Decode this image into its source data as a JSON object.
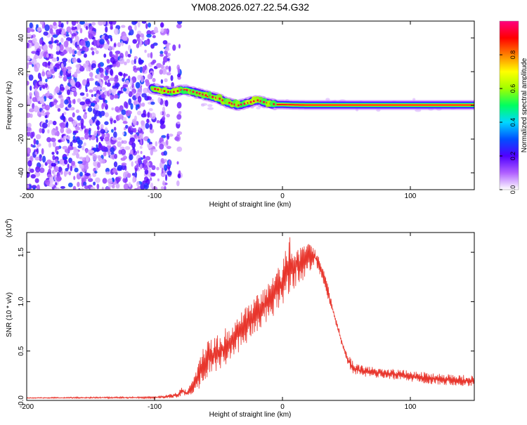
{
  "title": "YM08.2026.027.22.54.G32",
  "colors": {
    "snr_line": "#e8352c",
    "frame": "#000000",
    "background": "#ffffff",
    "signal_core": "#e02020",
    "noise": "#6a1fd8"
  },
  "colorbar": {
    "label": "Normalized spectral amplitude",
    "min": 0.0,
    "max": 1.0,
    "ticks": [
      "0.0",
      "0.2",
      "0.4",
      "0.6",
      "0.8"
    ],
    "tick_values": [
      0.0,
      0.2,
      0.4,
      0.6,
      0.8
    ],
    "stops": [
      "#ffffff",
      "#b060ff",
      "#5000ff",
      "#0050ff",
      "#00d8ff",
      "#00ff60",
      "#a0ff00",
      "#ffff00",
      "#ff8000",
      "#ff0000",
      "#ff0080"
    ]
  },
  "chart_data": [
    {
      "type": "heatmap",
      "title": "YM08.2026.027.22.54.G32",
      "xlabel": "Height of straight line (km)",
      "ylabel": "Frequency (Hz)",
      "xlim": [
        -200,
        150
      ],
      "ylim": [
        -50,
        50
      ],
      "xticks": [
        -200,
        -100,
        0,
        100
      ],
      "xtick_labels": [
        "-200",
        "-100",
        "0",
        "100"
      ],
      "yticks": [
        -40,
        -20,
        0,
        20,
        40
      ],
      "ytick_labels": [
        "-40",
        "-20",
        "0",
        "20",
        "40"
      ],
      "noise_region_km": [
        -200,
        -80
      ],
      "ridge": {
        "description": "dominant spectral peak (normalized amplitude ~1.0)",
        "x_km": [
          -102,
          -95,
          -90,
          -85,
          -80,
          -75,
          -70,
          -65,
          -60,
          -55,
          -50,
          -45,
          -40,
          -35,
          -30,
          -25,
          -20,
          -15,
          -10,
          -5,
          0,
          10,
          20,
          50,
          100,
          150
        ],
        "freq_hz": [
          10,
          9,
          8,
          8,
          9,
          9,
          8,
          7,
          6,
          5,
          4,
          2,
          1,
          0,
          1,
          2,
          3,
          2,
          1,
          0.5,
          0.5,
          0.3,
          0.2,
          0.2,
          0.2,
          0.2
        ]
      }
    },
    {
      "type": "line",
      "xlabel": "Height of straight line (km)",
      "ylabel": "SNR (10 * v/v)",
      "y_multiplier_label": "(x10",
      "y_multiplier_exp": "4",
      "xlim": [
        -200,
        150
      ],
      "ylim": [
        0,
        1.7
      ],
      "xticks": [
        -200,
        -100,
        0,
        100
      ],
      "xtick_labels": [
        "-200",
        "-100",
        "0",
        "100"
      ],
      "yticks": [
        0,
        0.5,
        1.0,
        1.5
      ],
      "ytick_labels": [
        "0.0",
        "0.5",
        "1.0",
        "1.5"
      ],
      "series": [
        {
          "name": "SNR",
          "envelope_x_km": [
            -200,
            -100,
            -90,
            -82,
            -78,
            -75,
            -70,
            -65,
            -60,
            -50,
            -40,
            -30,
            -20,
            -10,
            0,
            5,
            10,
            20,
            25,
            30,
            35,
            40,
            45,
            50,
            55,
            60,
            80,
            100,
            120,
            150
          ],
          "envelope_low": [
            0.02,
            0.02,
            0.02,
            0.03,
            0.05,
            0.04,
            0.06,
            0.12,
            0.22,
            0.3,
            0.4,
            0.55,
            0.68,
            0.8,
            0.95,
            1.05,
            1.15,
            1.25,
            1.38,
            1.25,
            1.05,
            0.85,
            0.6,
            0.38,
            0.27,
            0.24,
            0.22,
            0.19,
            0.16,
            0.14
          ],
          "envelope_high": [
            0.03,
            0.04,
            0.06,
            0.08,
            0.15,
            0.1,
            0.22,
            0.45,
            0.6,
            0.68,
            0.78,
            0.92,
            1.08,
            1.22,
            1.42,
            1.7,
            1.58,
            1.6,
            1.55,
            1.42,
            1.2,
            0.92,
            0.7,
            0.5,
            0.4,
            0.36,
            0.33,
            0.3,
            0.28,
            0.25
          ]
        }
      ]
    }
  ]
}
